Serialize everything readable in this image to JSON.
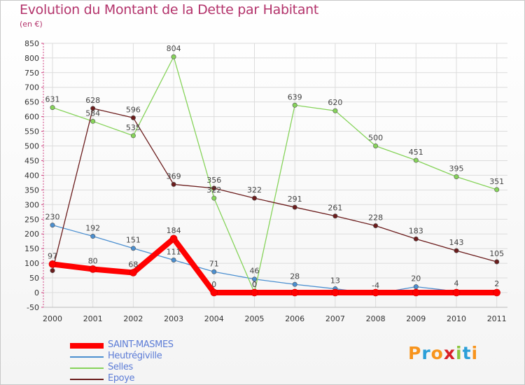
{
  "header": {
    "title": "Evolution du Montant de la Dette par Habitant",
    "unit": "(en €)"
  },
  "logo": {
    "text": "Proxiti",
    "colors": [
      "#f7941d",
      "#2b9fd8",
      "#f7941d",
      "#d92027",
      "#8dc63f",
      "#2b9fd8",
      "#f7941d"
    ]
  },
  "chart_data": {
    "type": "line",
    "x": [
      "2000",
      "2001",
      "2002",
      "2003",
      "2004",
      "2005",
      "2006",
      "2007",
      "2008",
      "2009",
      "2010",
      "2011"
    ],
    "ylim": [
      -50,
      850
    ],
    "yticks": [
      -50,
      0,
      50,
      100,
      150,
      200,
      250,
      300,
      350,
      400,
      450,
      500,
      550,
      600,
      650,
      700,
      750,
      800,
      850
    ],
    "grid": true,
    "legend_position": "bottom-left",
    "series": [
      {
        "name": "SAINT-MASMES",
        "color": "#ff0000",
        "values": [
          97,
          80,
          68,
          184,
          0,
          0,
          0,
          0,
          0,
          0,
          0,
          0
        ],
        "labels": [
          "97",
          "80",
          "68",
          "184",
          "0",
          "0",
          "",
          "",
          "",
          "",
          "",
          ""
        ]
      },
      {
        "name": "Heutrégiville",
        "color": "#4b8fd0",
        "values": [
          230,
          192,
          151,
          111,
          71,
          46,
          28,
          13,
          -4,
          20,
          4,
          2
        ],
        "labels": [
          "230",
          "192",
          "151",
          "111",
          "71",
          "46",
          "28",
          "13",
          "-4",
          "20",
          "4",
          "2"
        ]
      },
      {
        "name": "Selles",
        "color": "#86d35a",
        "values": [
          631,
          584,
          535,
          804,
          322,
          0,
          639,
          620,
          500,
          451,
          395,
          351
        ],
        "labels": [
          "631",
          "584",
          "535",
          "804",
          "322",
          "0",
          "639",
          "620",
          "500",
          "451",
          "395",
          "351"
        ]
      },
      {
        "name": "Epoye",
        "color": "#6b1c1c",
        "values": [
          75,
          628,
          596,
          369,
          356,
          322,
          291,
          261,
          228,
          183,
          143,
          105
        ],
        "labels": [
          "",
          "628",
          "596",
          "369",
          "356",
          "322",
          "291",
          "261",
          "228",
          "183",
          "143",
          "105"
        ]
      }
    ]
  }
}
